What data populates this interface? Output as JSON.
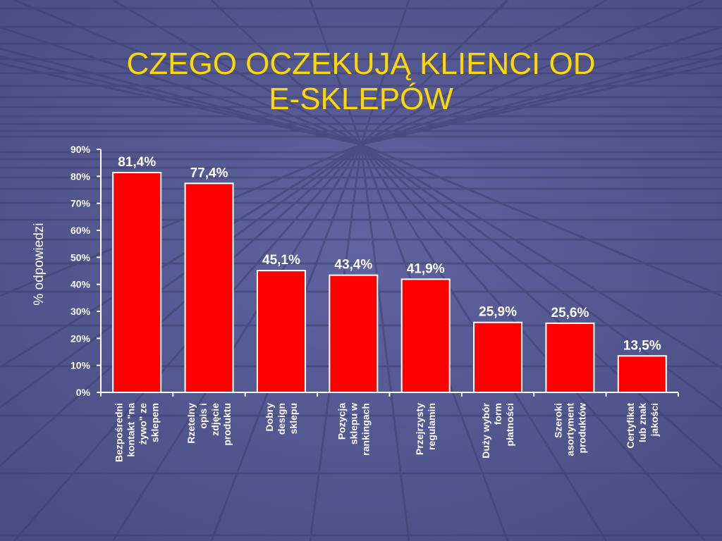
{
  "slide": {
    "title_line1": "CZEGO OCZEKUJĄ KLIENCI OD",
    "title_line2": "E-SKLEPÓW"
  },
  "colors": {
    "background": "#54588f",
    "title": "#ffd800",
    "bar": "#ff0000",
    "bar_border": "#ffffff",
    "text": "#ffffff"
  },
  "chart_data": {
    "type": "bar",
    "title": "",
    "xlabel": "",
    "ylabel": "% odpowiedzi",
    "ylim": [
      0,
      90
    ],
    "yticks": [
      "0%",
      "10%",
      "20%",
      "30%",
      "40%",
      "50%",
      "60%",
      "70%",
      "80%",
      "90%"
    ],
    "grid": false,
    "categories": [
      [
        "Bezpośredni",
        "kontakt \"na",
        "żywo\" ze",
        "sklepem"
      ],
      [
        "Rzetelny",
        "opis i",
        "zdjęcie",
        "produktu"
      ],
      [
        "Dobry",
        "design",
        "sklepu"
      ],
      [
        "Pozycja",
        "sklepu w",
        "rankingach"
      ],
      [
        "Przejrzysty",
        "regulamin"
      ],
      [
        "Duży wybór",
        "form",
        "płatności"
      ],
      [
        "Szeroki",
        "asortyment",
        "produktów"
      ],
      [
        "Certyfikat",
        "lub znak",
        "jakości"
      ]
    ],
    "values": [
      81.4,
      77.4,
      45.1,
      43.4,
      41.9,
      25.9,
      25.6,
      13.5
    ],
    "value_labels": [
      "81,4%",
      "77,4%",
      "45,1%",
      "43,4%",
      "41,9%",
      "25,9%",
      "25,6%",
      "13,5%"
    ]
  }
}
